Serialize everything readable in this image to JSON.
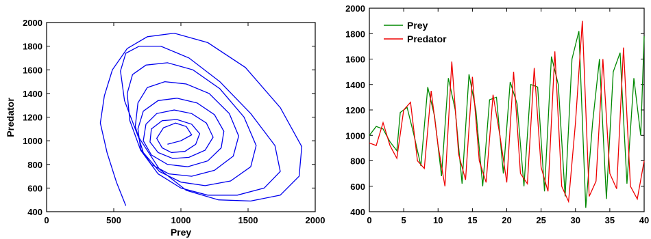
{
  "chart_data": [
    {
      "type": "line",
      "title": "",
      "xlabel": "Prey",
      "ylabel": "Predator",
      "xlim": [
        0,
        2000
      ],
      "ylim": [
        400,
        2000
      ],
      "xticks": [
        0,
        500,
        1000,
        1500,
        2000
      ],
      "yticks": [
        400,
        600,
        800,
        1000,
        1200,
        1400,
        1600,
        1800,
        2000
      ],
      "grid": false,
      "legend": "none",
      "series": [
        {
          "color": "#0000ee",
          "x": [
            900,
            1000,
            1080,
            1040,
            960,
            870,
            820,
            860,
            930,
            1030,
            1110,
            1140,
            1080,
            970,
            860,
            780,
            770,
            830,
            940,
            1060,
            1180,
            1240,
            1190,
            1080,
            950,
            820,
            740,
            720,
            780,
            900,
            1050,
            1200,
            1300,
            1320,
            1250,
            1120,
            970,
            830,
            720,
            680,
            700,
            780,
            910,
            1080,
            1250,
            1390,
            1430,
            1360,
            1210,
            1040,
            880,
            750,
            680,
            660,
            720,
            840,
            1000,
            1180,
            1370,
            1520,
            1560,
            1470,
            1290,
            1090,
            900,
            740,
            640,
            600,
            620,
            700,
            830,
            1000,
            1200,
            1420,
            1620,
            1740,
            1700,
            1520,
            1290,
            1060,
            850,
            690,
            590,
            550,
            580,
            680,
            840,
            1040,
            1280,
            1520,
            1740,
            1880,
            1900,
            1740,
            1480,
            1200,
            950,
            750,
            600,
            490,
            430,
            400,
            450,
            520,
            590
          ],
          "y": [
            970,
            1000,
            1050,
            1120,
            1150,
            1110,
            1020,
            940,
            900,
            910,
            970,
            1060,
            1140,
            1180,
            1170,
            1100,
            990,
            900,
            850,
            860,
            920,
            1030,
            1150,
            1230,
            1260,
            1230,
            1140,
            1000,
            880,
            800,
            780,
            830,
            940,
            1080,
            1220,
            1320,
            1360,
            1340,
            1250,
            1100,
            930,
            800,
            720,
            700,
            750,
            870,
            1040,
            1230,
            1400,
            1480,
            1500,
            1450,
            1320,
            1120,
            900,
            740,
            650,
            620,
            660,
            780,
            960,
            1200,
            1440,
            1600,
            1660,
            1640,
            1560,
            1400,
            1170,
            920,
            720,
            600,
            540,
            540,
            600,
            740,
            960,
            1230,
            1500,
            1700,
            1800,
            1800,
            1740,
            1590,
            1340,
            1040,
            760,
            580,
            500,
            490,
            540,
            700,
            950,
            1280,
            1620,
            1830,
            1910,
            1880,
            1780,
            1600,
            1380,
            1150,
            900,
            650,
            450
          ]
        }
      ]
    },
    {
      "type": "line",
      "title": "",
      "xlabel": "",
      "ylabel": "",
      "xlim": [
        0,
        40
      ],
      "ylim": [
        400,
        2000
      ],
      "xticks": [
        0,
        5,
        10,
        15,
        20,
        25,
        30,
        35,
        40
      ],
      "yticks": [
        400,
        600,
        800,
        1000,
        1200,
        1400,
        1600,
        1800,
        2000
      ],
      "grid": false,
      "legend": "top-left",
      "series": [
        {
          "name": "Prey",
          "color": "#008800",
          "x": [
            0,
            1,
            2,
            3,
            4,
            4.5,
            5.5,
            6.5,
            7.5,
            8.5,
            9.5,
            10.5,
            11.5,
            12.5,
            13.5,
            14.5,
            15.5,
            16.5,
            17.5,
            18.5,
            19.5,
            20.5,
            21.5,
            22.5,
            23.5,
            24.5,
            25.5,
            26.5,
            27.5,
            28.5,
            29.5,
            30.5,
            31.5,
            32.5,
            33.5,
            34.5,
            35.5,
            36.5,
            37.5,
            38.5,
            39.5,
            40
          ],
          "y": [
            1000,
            1070,
            1050,
            950,
            880,
            1180,
            1220,
            1000,
            760,
            1380,
            1150,
            680,
            1450,
            1200,
            620,
            1480,
            1200,
            600,
            1280,
            1300,
            700,
            1420,
            1250,
            600,
            1400,
            1380,
            560,
            1620,
            1400,
            520,
            1600,
            1820,
            430,
            1100,
            1600,
            500,
            1500,
            1650,
            620,
            1450,
            1000,
            1780
          ]
        },
        {
          "name": "Predator",
          "color": "#ee0000",
          "x": [
            0,
            1,
            2,
            3,
            4,
            5,
            6,
            7,
            8,
            9,
            10,
            11,
            12,
            13,
            14,
            15,
            16,
            17,
            18,
            19,
            20,
            21,
            22,
            23,
            24,
            25,
            26,
            27,
            28,
            29,
            30,
            31,
            32,
            33,
            34,
            35,
            36,
            37,
            38,
            39,
            40
          ],
          "y": [
            940,
            920,
            1100,
            920,
            820,
            1200,
            1260,
            800,
            740,
            1350,
            920,
            600,
            1580,
            850,
            650,
            1460,
            800,
            630,
            1320,
            1000,
            630,
            1500,
            700,
            620,
            1530,
            750,
            560,
            1660,
            600,
            480,
            1100,
            1900,
            520,
            640,
            1600,
            700,
            580,
            1690,
            600,
            500,
            800
          ]
        }
      ]
    }
  ]
}
